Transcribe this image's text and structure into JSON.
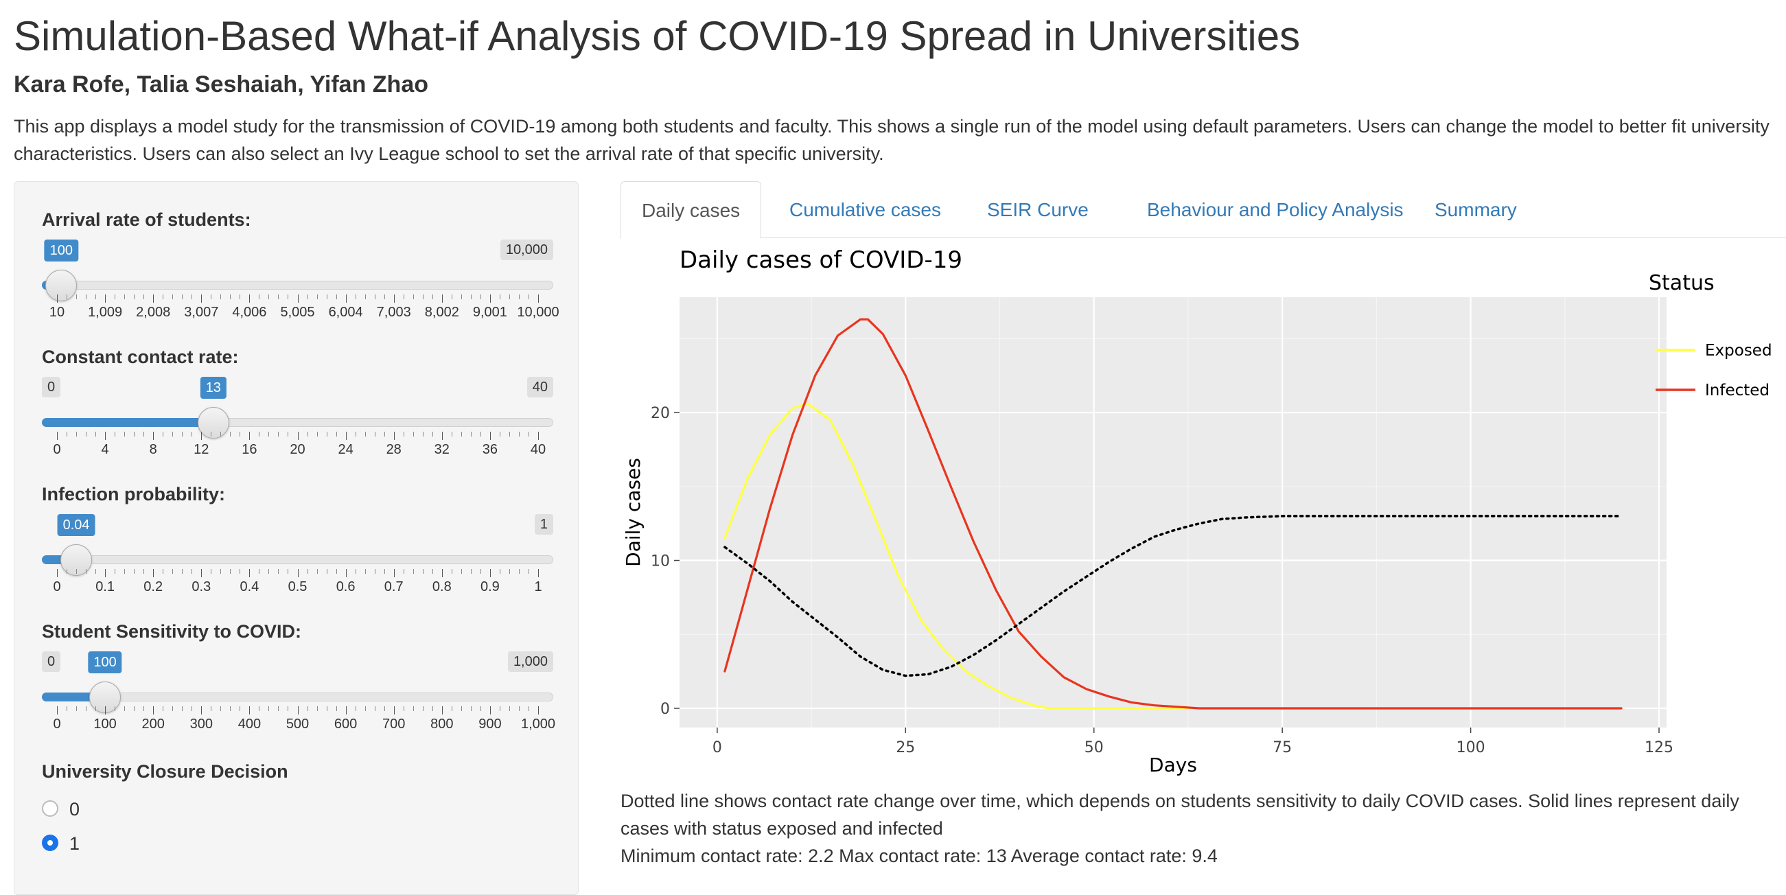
{
  "header": {
    "title": "Simulation-Based What-if Analysis of COVID-19 Spread in Universities",
    "authors": "Kara Rofe, Talia Seshaiah, Yifan Zhao",
    "description": "This app displays a model study for the transmission of COVID-19 among both students and faculty. This shows a single run of the model using default parameters. Users can change the model to better fit university characteristics. Users can also select an Ivy League school to set the arrival rate of that specific university."
  },
  "sidebar": {
    "sliders": [
      {
        "id": "arrival",
        "label": "Arrival rate of students:",
        "min": 10,
        "max": 10000,
        "value": 100,
        "min_label": "",
        "max_label": "10,000",
        "value_label": "100",
        "ticks": [
          "10",
          "1,009",
          "2,008",
          "3,007",
          "4,006",
          "5,005",
          "6,004",
          "7,003",
          "8,002",
          "9,001",
          "10,000"
        ]
      },
      {
        "id": "contact",
        "label": "Constant contact rate:",
        "min": 0,
        "max": 40,
        "value": 13,
        "min_label": "0",
        "max_label": "40",
        "value_label": "13",
        "ticks": [
          "0",
          "4",
          "8",
          "12",
          "16",
          "20",
          "24",
          "28",
          "32",
          "36",
          "40"
        ]
      },
      {
        "id": "infection",
        "label": "Infection probability:",
        "min": 0,
        "max": 1,
        "value": 0.04,
        "min_label": "",
        "max_label": "1",
        "value_label": "0.04",
        "ticks": [
          "0",
          "0.1",
          "0.2",
          "0.3",
          "0.4",
          "0.5",
          "0.6",
          "0.7",
          "0.8",
          "0.9",
          "1"
        ]
      },
      {
        "id": "sensitivity",
        "label": "Student Sensitivity to COVID:",
        "min": 0,
        "max": 1000,
        "value": 100,
        "min_label": "0",
        "max_label": "1,000",
        "value_label": "100",
        "ticks": [
          "0",
          "100",
          "200",
          "300",
          "400",
          "500",
          "600",
          "700",
          "800",
          "900",
          "1,000"
        ]
      }
    ],
    "closure": {
      "label": "University Closure Decision",
      "options": [
        {
          "label": "0",
          "checked": false
        },
        {
          "label": "1",
          "checked": true
        }
      ]
    }
  },
  "tabs": [
    {
      "label": "Daily cases",
      "active": true
    },
    {
      "label": "Cumulative cases",
      "active": false
    },
    {
      "label": "SEIR Curve",
      "active": false
    },
    {
      "label": "Behaviour and Policy Analysis",
      "active": false
    },
    {
      "label": "Summary",
      "active": false
    }
  ],
  "chart_data": {
    "type": "line",
    "title": "Daily cases of COVID-19",
    "xlabel": "Days",
    "ylabel": "Daily cases",
    "xlim": [
      -5,
      126
    ],
    "ylim": [
      -1.3,
      27.8
    ],
    "xticks": [
      0,
      25,
      50,
      75,
      100,
      125
    ],
    "yticks": [
      0,
      10,
      20
    ],
    "legend_title": "Status",
    "legend_position": "right",
    "grid": true,
    "series": [
      {
        "name": "Exposed",
        "color": "#ffff44",
        "style": "solid",
        "x": [
          1,
          4,
          7,
          10,
          12,
          15,
          18,
          21,
          24,
          27,
          30,
          33,
          36,
          39,
          42,
          44,
          50,
          60,
          65,
          70,
          80,
          100,
          120
        ],
        "y": [
          11.5,
          15.5,
          18.5,
          20.3,
          20.6,
          19.5,
          16.5,
          12.8,
          9.0,
          6.0,
          4.0,
          2.5,
          1.5,
          0.7,
          0.2,
          0,
          0,
          0,
          0,
          0,
          0,
          0,
          0
        ]
      },
      {
        "name": "Infected",
        "color": "#e8351f",
        "style": "solid",
        "x": [
          1,
          4,
          7,
          10,
          13,
          16,
          19,
          20,
          22,
          25,
          28,
          31,
          34,
          37,
          40,
          43,
          46,
          49,
          52,
          55,
          58,
          61,
          64,
          70,
          80,
          100,
          120
        ],
        "y": [
          2.5,
          8.0,
          13.5,
          18.5,
          22.5,
          25.2,
          26.3,
          26.3,
          25.3,
          22.5,
          18.8,
          15.0,
          11.3,
          8.0,
          5.2,
          3.5,
          2.1,
          1.3,
          0.8,
          0.4,
          0.2,
          0.1,
          0,
          0,
          0,
          0,
          0
        ]
      },
      {
        "name": "",
        "color": "#000000",
        "style": "dotted",
        "x": [
          1,
          4,
          7,
          10,
          13,
          16,
          19,
          22,
          25,
          28,
          31,
          34,
          37,
          40,
          43,
          46,
          49,
          52,
          55,
          58,
          61,
          64,
          67,
          70,
          75,
          80,
          90,
          100,
          110,
          120
        ],
        "y": [
          10.9,
          9.8,
          8.6,
          7.2,
          6.0,
          4.8,
          3.5,
          2.6,
          2.2,
          2.3,
          2.8,
          3.6,
          4.6,
          5.7,
          6.8,
          7.9,
          8.9,
          9.9,
          10.8,
          11.6,
          12.1,
          12.5,
          12.8,
          12.9,
          13.0,
          13.0,
          13.0,
          13.0,
          13.0,
          13.0
        ]
      }
    ]
  },
  "caption": "Dotted line shows contact rate change over time, which depends on students sensitivity to daily COVID cases. Solid lines represent daily cases with status exposed and infected",
  "stats": "Minimum contact rate: 2.2 Max contact rate: 13 Average contact rate: 9.4"
}
